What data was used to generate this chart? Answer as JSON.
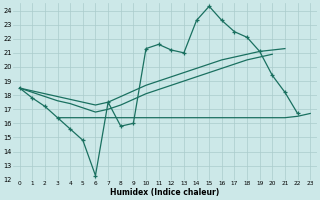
{
  "xlabel": "Humidex (Indice chaleur)",
  "bg_color": "#cce8e8",
  "grid_color": "#aacccc",
  "line_color": "#1a7060",
  "xlim": [
    -0.5,
    23.5
  ],
  "ylim": [
    12,
    24.5
  ],
  "yticks": [
    12,
    13,
    14,
    15,
    16,
    17,
    18,
    19,
    20,
    21,
    22,
    23,
    24
  ],
  "xticks": [
    0,
    1,
    2,
    3,
    4,
    5,
    6,
    7,
    8,
    9,
    10,
    11,
    12,
    13,
    14,
    15,
    16,
    17,
    18,
    19,
    20,
    21,
    22,
    23
  ],
  "line1_x": [
    0,
    1,
    2,
    3,
    4,
    5,
    6,
    7,
    8,
    9,
    10,
    11,
    12,
    13,
    14,
    15,
    16,
    17,
    18,
    19,
    20,
    21,
    22
  ],
  "line1_y": [
    18.5,
    17.8,
    17.2,
    16.4,
    15.6,
    14.8,
    12.3,
    17.5,
    15.8,
    16.0,
    21.3,
    21.6,
    21.2,
    21.0,
    23.3,
    24.3,
    23.3,
    22.5,
    22.1,
    21.1,
    19.4,
    18.2,
    16.7
  ],
  "line2_x": [
    0,
    1,
    2,
    3,
    4,
    5,
    6,
    7,
    8,
    9,
    10,
    11,
    12,
    13,
    14,
    15,
    16,
    17,
    18,
    19,
    20,
    21
  ],
  "line2_y": [
    18.5,
    18.3,
    18.1,
    17.9,
    17.7,
    17.5,
    17.3,
    17.5,
    17.9,
    18.3,
    18.7,
    19.0,
    19.3,
    19.6,
    19.9,
    20.2,
    20.5,
    20.7,
    20.9,
    21.1,
    21.2,
    21.3
  ],
  "line3_x": [
    0,
    1,
    2,
    3,
    4,
    5,
    6,
    7,
    8,
    9,
    10,
    11,
    12,
    13,
    14,
    15,
    16,
    17,
    18,
    19,
    20
  ],
  "line3_y": [
    18.5,
    18.2,
    17.9,
    17.6,
    17.4,
    17.1,
    16.8,
    17.0,
    17.3,
    17.7,
    18.1,
    18.4,
    18.7,
    19.0,
    19.3,
    19.6,
    19.9,
    20.2,
    20.5,
    20.7,
    20.9
  ],
  "line4_x": [
    3,
    6,
    9,
    10,
    11,
    12,
    13,
    14,
    15,
    16,
    17,
    18,
    19,
    20,
    21,
    22,
    23
  ],
  "line4_y": [
    16.4,
    16.4,
    16.4,
    16.4,
    16.4,
    16.4,
    16.4,
    16.4,
    16.4,
    16.4,
    16.4,
    16.4,
    16.4,
    16.4,
    16.4,
    16.5,
    16.7
  ]
}
